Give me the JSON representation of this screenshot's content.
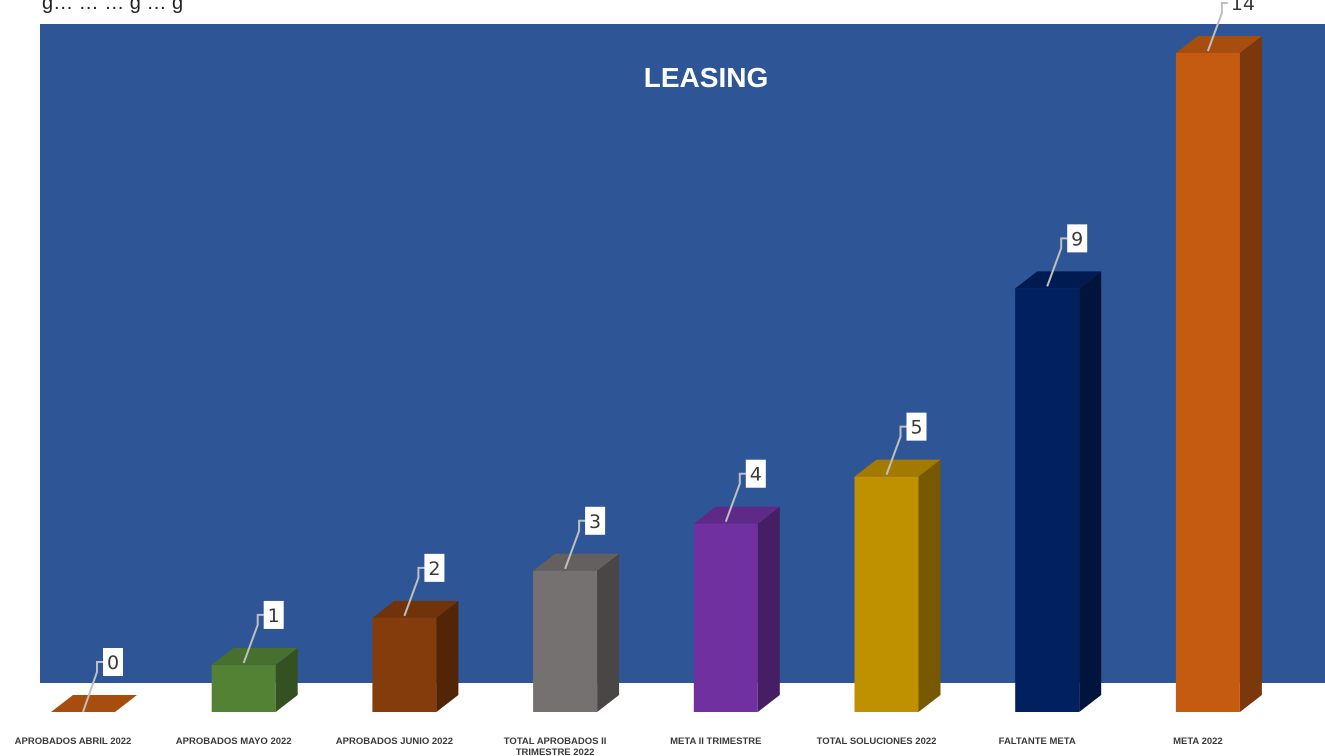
{
  "caption": "g… … … g … g",
  "colors": {
    "plot_background": "#2E5596",
    "label_box": "#ffffff",
    "leader_line": "#bfbfbf",
    "text_light": "#ffffff",
    "text_dark": "#3a3a3a"
  },
  "chart_data": {
    "type": "bar",
    "style": "3d-column",
    "title": "LEASING",
    "categories": [
      "APROBADOS  ABRIL 2022",
      "APROBADOS MAYO 2022",
      "APROBADOS JUNIO 2022",
      "TOTAL APROBADOS II TRIMESTRE 2022",
      "META II TRIMESTRE",
      "TOTAL SOLUCIONES 2022",
      "FALTANTE META",
      "META 2022"
    ],
    "values": [
      0,
      1,
      2,
      3,
      4,
      5,
      9,
      14
    ],
    "bar_colors": [
      "#C55A11",
      "#548235",
      "#843C0C",
      "#767171",
      "#7030A0",
      "#BF9000",
      "#002060",
      "#C55A11"
    ],
    "ylim": [
      0,
      14
    ],
    "grid": false,
    "legend": "none"
  }
}
